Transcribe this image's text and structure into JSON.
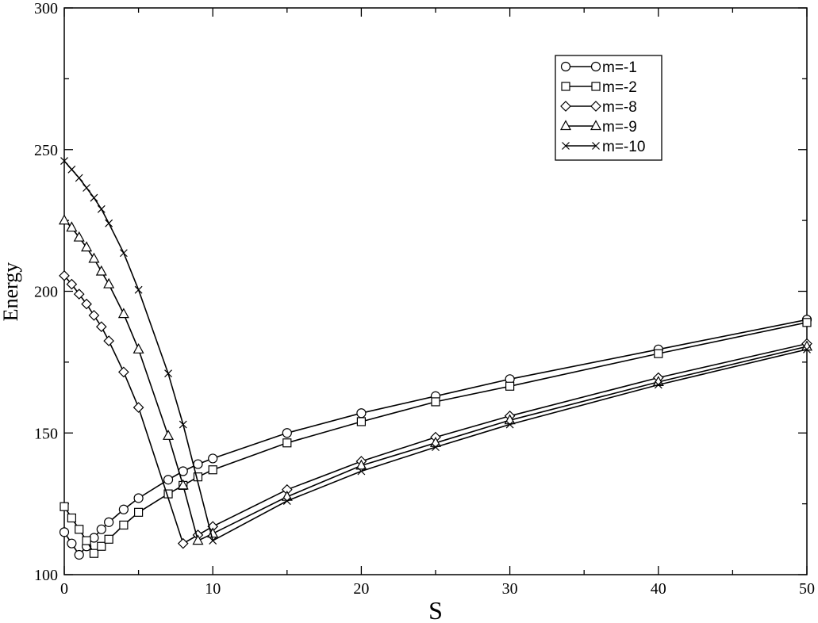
{
  "chart_data": {
    "type": "line",
    "xlabel": "S",
    "ylabel": "Energy",
    "xlim": [
      0,
      50
    ],
    "ylim": [
      100,
      300
    ],
    "xticks": [
      0,
      10,
      20,
      30,
      40,
      50
    ],
    "yticks": [
      100,
      150,
      200,
      250,
      300
    ],
    "grid": false,
    "legend_position": "top-right",
    "series": [
      {
        "name": "m=-1",
        "marker": "circle",
        "x": [
          0,
          0.5,
          1,
          1.5,
          2,
          2.5,
          3,
          4,
          5,
          7,
          8,
          9,
          10,
          15,
          20,
          25,
          30,
          40,
          50
        ],
        "y": [
          115,
          111,
          107,
          110,
          113,
          116,
          118.5,
          123,
          127,
          133.5,
          136.5,
          139,
          141,
          150,
          157,
          163,
          169,
          179.5,
          190
        ]
      },
      {
        "name": "m=-2",
        "marker": "square",
        "x": [
          0,
          0.5,
          1,
          1.5,
          2,
          2.5,
          3,
          4,
          5,
          7,
          8,
          9,
          10,
          15,
          20,
          25,
          30,
          40,
          50
        ],
        "y": [
          124,
          120,
          116,
          112,
          107.5,
          110,
          112.5,
          117.5,
          122,
          128.5,
          131.5,
          134.5,
          137,
          146.5,
          154,
          161,
          166.5,
          178,
          189
        ]
      },
      {
        "name": "m=-8",
        "marker": "diamond",
        "x": [
          0,
          0.5,
          1,
          1.5,
          2,
          2.5,
          3,
          4,
          5,
          8,
          9,
          10,
          15,
          20,
          25,
          30,
          40,
          50
        ],
        "y": [
          205.5,
          202.5,
          199,
          195.5,
          191.5,
          187.5,
          182.5,
          171.5,
          159,
          111,
          114,
          117,
          130,
          140,
          148.5,
          156,
          169.5,
          181.5
        ]
      },
      {
        "name": "m=-9",
        "marker": "triangle",
        "x": [
          0,
          0.5,
          1,
          1.5,
          2,
          2.5,
          3,
          4,
          5,
          7,
          8,
          9,
          10,
          15,
          20,
          25,
          30,
          40,
          50
        ],
        "y": [
          225,
          222.5,
          219,
          215.5,
          211.5,
          207,
          202.5,
          192,
          179.5,
          149,
          131.5,
          112,
          114.5,
          127.5,
          138.5,
          146.5,
          154.5,
          168,
          180.5
        ]
      },
      {
        "name": "m=-10",
        "marker": "x",
        "x": [
          0,
          0.5,
          1,
          1.5,
          2,
          2.5,
          3,
          4,
          5,
          7,
          8,
          10,
          15,
          20,
          25,
          30,
          40,
          50
        ],
        "y": [
          246,
          243,
          240,
          236.5,
          233,
          229,
          224,
          213.5,
          200.5,
          171,
          153,
          112,
          126,
          136.5,
          145,
          153,
          167,
          179.5
        ]
      }
    ]
  }
}
